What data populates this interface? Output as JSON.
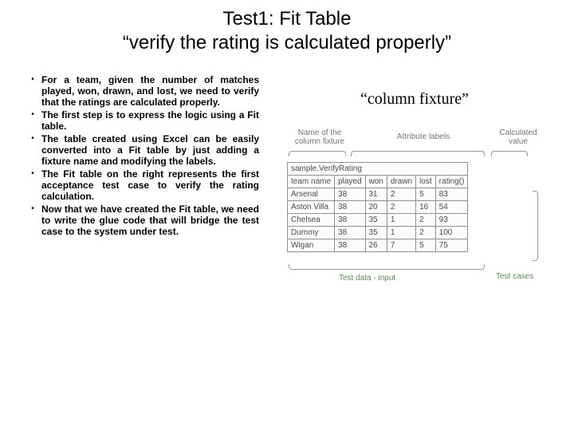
{
  "title_line1": "Test1: Fit Table",
  "title_line2": "“verify the rating is calculated properly”",
  "bullets": [
    "For a team, given the number of matches played, won, drawn, and lost, we need to verify that the ratings are calculated properly.",
    "The first step is to express the logic using a Fit table.",
    "The table created using Excel can be easily converted into a Fit table by just adding a fixture name and modifying the labels.",
    "The <b>Fit table</b> on the right represents the first acceptance test case to verify the rating calculation.",
    "Now that we have created the Fit table, we need to write the glue code that will bridge the test case to the system under test."
  ],
  "column_fixture_label": "“column fixture”",
  "annotations": {
    "name_of_column_fixture": "Name of the column fixture",
    "attribute_labels": "Attribute labels",
    "calculated_value": "Calculated value",
    "test_data_input": "Test data - input",
    "test_cases": "Test cases"
  },
  "fit_table": {
    "fixture_name": "sample.VerifyRating",
    "columns": [
      "team name",
      "played",
      "won",
      "drawn",
      "lost",
      "rating()"
    ],
    "rows": [
      [
        "Arsenal",
        "38",
        "31",
        "2",
        "5",
        "83"
      ],
      [
        "Aston Villa",
        "38",
        "20",
        "2",
        "16",
        "54"
      ],
      [
        "Chelsea",
        "38",
        "35",
        "1",
        "2",
        "93"
      ],
      [
        "Dummy",
        "38",
        "35",
        "1",
        "2",
        "100"
      ],
      [
        "Wigan",
        "38",
        "26",
        "7",
        "5",
        "75"
      ]
    ]
  },
  "bullet_char": "•"
}
